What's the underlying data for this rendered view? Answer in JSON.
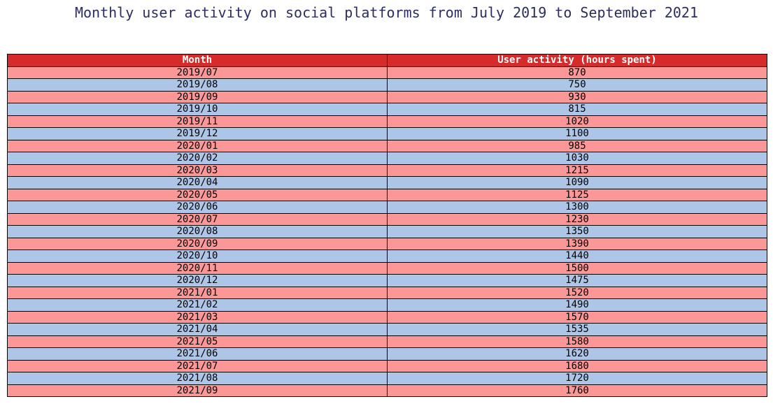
{
  "chart_data": {
    "type": "table",
    "title": "Monthly user activity on social platforms from July 2019 to September 2021",
    "columns": [
      "Month",
      "User activity (hours spent)"
    ],
    "rows": [
      [
        "2019/07",
        870
      ],
      [
        "2019/08",
        750
      ],
      [
        "2019/09",
        930
      ],
      [
        "2019/10",
        815
      ],
      [
        "2019/11",
        1020
      ],
      [
        "2019/12",
        1100
      ],
      [
        "2020/01",
        985
      ],
      [
        "2020/02",
        1030
      ],
      [
        "2020/03",
        1215
      ],
      [
        "2020/04",
        1090
      ],
      [
        "2020/05",
        1125
      ],
      [
        "2020/06",
        1300
      ],
      [
        "2020/07",
        1230
      ],
      [
        "2020/08",
        1350
      ],
      [
        "2020/09",
        1390
      ],
      [
        "2020/10",
        1440
      ],
      [
        "2020/11",
        1500
      ],
      [
        "2020/12",
        1475
      ],
      [
        "2021/01",
        1520
      ],
      [
        "2021/02",
        1490
      ],
      [
        "2021/03",
        1570
      ],
      [
        "2021/04",
        1535
      ],
      [
        "2021/05",
        1580
      ],
      [
        "2021/06",
        1620
      ],
      [
        "2021/07",
        1680
      ],
      [
        "2021/08",
        1720
      ],
      [
        "2021/09",
        1760
      ]
    ],
    "colors": {
      "header": "#d62b2b",
      "row_odd": "#fc9797",
      "row_even": "#adc6e8",
      "title": "#2b2d5e"
    }
  }
}
